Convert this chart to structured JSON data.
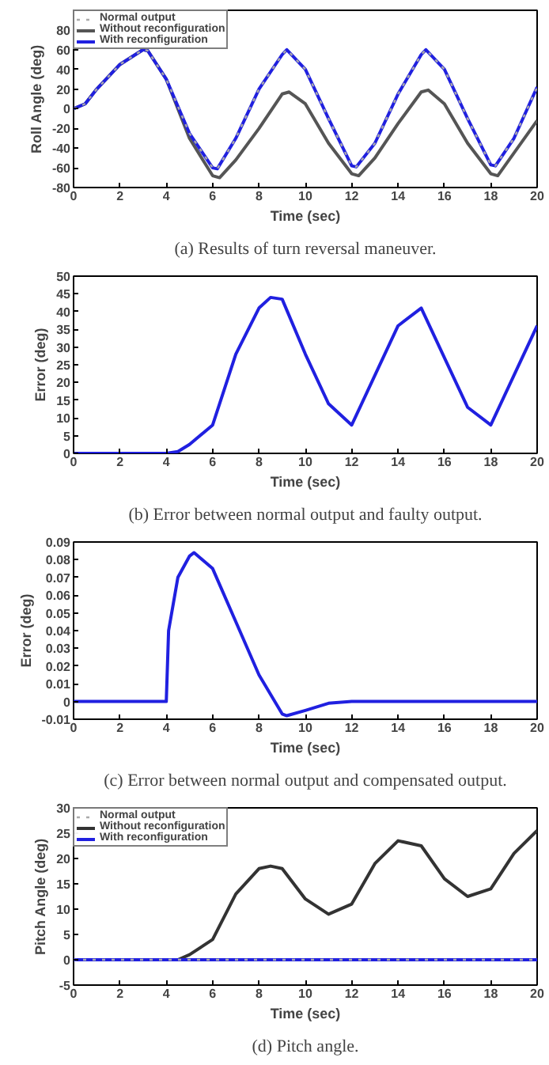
{
  "chart_data": [
    {
      "type": "line",
      "title": "(a) Results of turn reversal maneuver.",
      "xlabel": "Time (sec)",
      "ylabel": "Roll Angle (deg)",
      "xlim": [
        0,
        20
      ],
      "xticks": [
        0,
        2,
        4,
        6,
        8,
        10,
        12,
        14,
        16,
        18,
        20
      ],
      "ylim": [
        -80,
        100
      ],
      "yticks": [
        -80,
        -60,
        -40,
        -20,
        0,
        20,
        40,
        60,
        80
      ],
      "grid": false,
      "legend": "top left",
      "series": [
        {
          "name": "Without reconfiguration",
          "color": "#555555",
          "line_style": "solid",
          "x": [
            0,
            0.5,
            1,
            2,
            3,
            3.2,
            4,
            5,
            6,
            6.3,
            7,
            8,
            9,
            9.3,
            10,
            11,
            12,
            12.3,
            13,
            14,
            15,
            15.3,
            16,
            17,
            18,
            18.3,
            19,
            20
          ],
          "values": [
            0,
            5,
            20,
            45,
            60,
            59,
            30,
            -30,
            -68,
            -70,
            -52,
            -20,
            15,
            17,
            5,
            -35,
            -66,
            -68,
            -50,
            -15,
            17,
            19,
            5,
            -35,
            -66,
            -68,
            -45,
            -12
          ]
        },
        {
          "name": "With reconfiguration",
          "color": "#2020e0",
          "line_style": "solid",
          "x": [
            0,
            0.5,
            1,
            2,
            3,
            3.2,
            4,
            5,
            6,
            6.2,
            7,
            8,
            9,
            9.2,
            10,
            11,
            12,
            12.2,
            13,
            14,
            15,
            15.2,
            16,
            17,
            18,
            18.2,
            19,
            20
          ],
          "values": [
            0,
            5,
            20,
            45,
            60,
            59,
            30,
            -25,
            -60,
            -61,
            -30,
            20,
            55,
            60,
            40,
            -10,
            -58,
            -59,
            -35,
            15,
            55,
            60,
            40,
            -10,
            -57,
            -58,
            -30,
            22
          ]
        },
        {
          "name": "Normal output",
          "color": "#aaaaaa",
          "line_style": "dotted",
          "x": [
            0,
            0.5,
            1,
            2,
            3,
            3.2,
            4,
            5,
            6,
            6.2,
            7,
            8,
            9,
            9.2,
            10,
            11,
            12,
            12.2,
            13,
            14,
            15,
            15.2,
            16,
            17,
            18,
            18.2,
            19,
            20
          ],
          "values": [
            0,
            5,
            20,
            45,
            60,
            59,
            30,
            -25,
            -60,
            -61,
            -30,
            20,
            55,
            60,
            40,
            -10,
            -58,
            -59,
            -35,
            15,
            55,
            60,
            40,
            -10,
            -57,
            -58,
            -30,
            22
          ]
        }
      ]
    },
    {
      "type": "line",
      "title": "(b) Error between normal output and faulty output.",
      "xlabel": "Time (sec)",
      "ylabel": "Error (deg)",
      "xlim": [
        0,
        20
      ],
      "xticks": [
        0,
        2,
        4,
        6,
        8,
        10,
        12,
        14,
        16,
        18,
        20
      ],
      "ylim": [
        0,
        50
      ],
      "yticks": [
        0,
        5,
        10,
        15,
        20,
        25,
        30,
        35,
        40,
        45,
        50
      ],
      "grid": false,
      "legend": false,
      "series": [
        {
          "color": "#2020e0",
          "line_style": "solid",
          "x": [
            0,
            2,
            4,
            4.5,
            5,
            6,
            7,
            8,
            8.5,
            9,
            10,
            11,
            12,
            13,
            14,
            15,
            16,
            17,
            18,
            19,
            20
          ],
          "values": [
            0,
            0,
            0,
            0.5,
            2.5,
            8,
            28,
            41,
            44,
            43.5,
            28,
            14,
            8,
            22,
            36,
            41,
            27,
            13,
            8,
            22,
            36
          ]
        }
      ]
    },
    {
      "type": "line",
      "title": "(c) Error between normal output and compensated output.",
      "xlabel": "Time (sec)",
      "ylabel": "Error (deg)",
      "xlim": [
        0,
        20
      ],
      "xticks": [
        0,
        2,
        4,
        6,
        8,
        10,
        12,
        14,
        16,
        18,
        20
      ],
      "ylim": [
        -0.01,
        0.09
      ],
      "yticks": [
        -0.01,
        0,
        0.01,
        0.02,
        0.03,
        0.04,
        0.05,
        0.06,
        0.07,
        0.08,
        0.09
      ],
      "grid": false,
      "legend": false,
      "series": [
        {
          "color": "#2020e0",
          "line_style": "solid",
          "x": [
            0,
            2,
            4,
            4.1,
            4.5,
            5,
            5.2,
            6,
            7,
            8,
            9,
            9.2,
            10,
            11,
            12,
            14,
            16,
            18,
            20
          ],
          "values": [
            0,
            0,
            0,
            0.04,
            0.07,
            0.082,
            0.084,
            0.075,
            0.045,
            0.015,
            -0.007,
            -0.008,
            -0.005,
            -0.001,
            0,
            0,
            0,
            0,
            0
          ]
        }
      ]
    },
    {
      "type": "line",
      "title": "(d) Pitch angle.",
      "xlabel": "Time (sec)",
      "ylabel": "Pitch Angle (deg)",
      "xlim": [
        0,
        20
      ],
      "xticks": [
        0,
        2,
        4,
        6,
        8,
        10,
        12,
        14,
        16,
        18,
        20
      ],
      "ylim": [
        -5,
        30
      ],
      "yticks": [
        -5,
        0,
        5,
        10,
        15,
        20,
        25,
        30
      ],
      "grid": false,
      "legend": "top left",
      "series": [
        {
          "name": "Without reconfiguration",
          "color": "#333333",
          "line_style": "solid",
          "x": [
            0,
            2,
            4,
            4.5,
            5,
            6,
            7,
            8,
            8.5,
            9,
            10,
            11,
            12,
            13,
            14,
            15,
            16,
            17,
            18,
            19,
            20
          ],
          "values": [
            0,
            0,
            0,
            0,
            1,
            4,
            13,
            18,
            18.5,
            18,
            12,
            9,
            11,
            19,
            23.5,
            22.5,
            16,
            12.5,
            14,
            21,
            25.5
          ]
        },
        {
          "name": "With reconfiguration",
          "color": "#2020e0",
          "line_style": "solid",
          "x": [
            0,
            20
          ],
          "values": [
            0,
            0
          ]
        },
        {
          "name": "Normal output",
          "color": "#aaaaaa",
          "line_style": "dotted",
          "x": [
            0,
            20
          ],
          "values": [
            0,
            0
          ]
        }
      ]
    }
  ]
}
